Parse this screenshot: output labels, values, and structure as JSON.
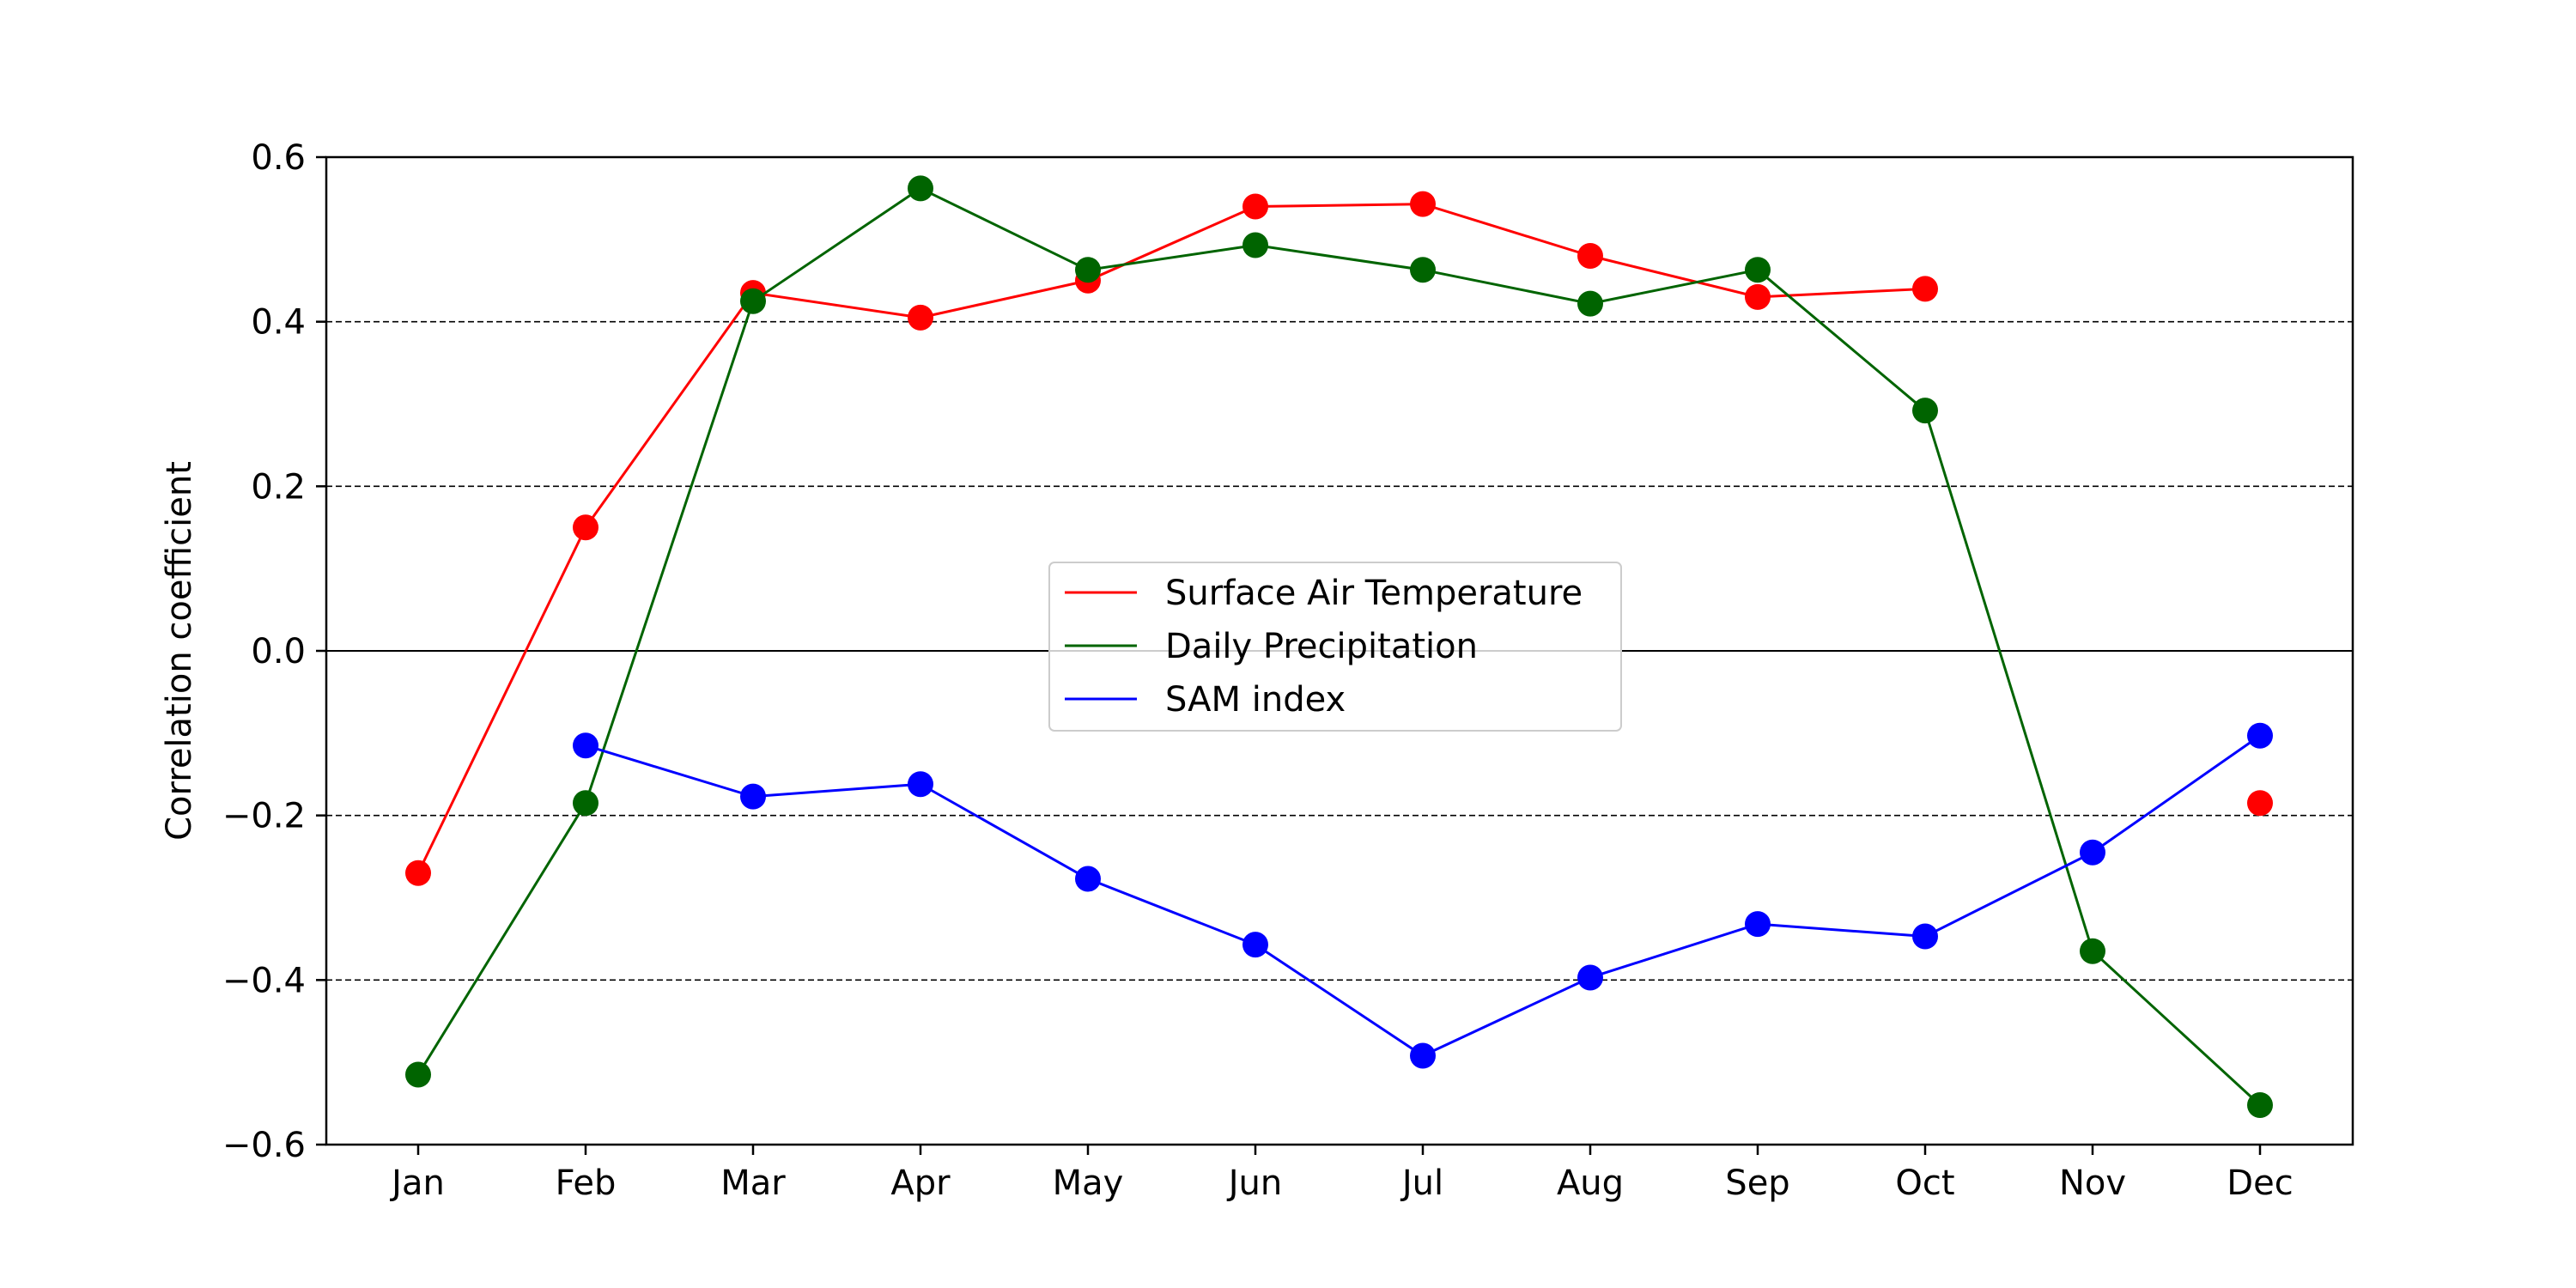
{
  "chart_data": {
    "type": "line",
    "title": "",
    "xlabel": "",
    "ylabel": "Correlation coefficient",
    "categories": [
      "Jan",
      "Feb",
      "Mar",
      "Apr",
      "May",
      "Jun",
      "Jul",
      "Aug",
      "Sep",
      "Oct",
      "Nov",
      "Dec"
    ],
    "ylim": [
      -0.6,
      0.6
    ],
    "yticks": [
      -0.6,
      -0.4,
      -0.2,
      0.0,
      0.2,
      0.4,
      0.6
    ],
    "ytick_labels": [
      "−0.6",
      "−0.4",
      "−0.2",
      "0.0",
      "0.2",
      "0.4",
      "0.6"
    ],
    "grid": "horizontal dashed at ±0.2 and ±0.4, solid line at 0",
    "legend_position": "center",
    "series": [
      {
        "name": "Surface Air Temperature",
        "color": "#ff0000",
        "values": [
          -0.27,
          0.15,
          0.435,
          0.405,
          0.45,
          0.54,
          0.543,
          0.48,
          0.43,
          0.44,
          null,
          -0.185
        ]
      },
      {
        "name": "Daily Precipitation",
        "color": "#006400",
        "values": [
          -0.515,
          -0.185,
          0.425,
          0.562,
          0.463,
          0.493,
          0.463,
          0.422,
          0.463,
          0.292,
          -0.365,
          -0.552
        ]
      },
      {
        "name": "SAM index",
        "color": "#0000ff",
        "values": [
          null,
          -0.115,
          -0.177,
          -0.162,
          -0.277,
          -0.357,
          -0.492,
          -0.397,
          -0.332,
          -0.347,
          -0.245,
          -0.103
        ]
      }
    ]
  }
}
